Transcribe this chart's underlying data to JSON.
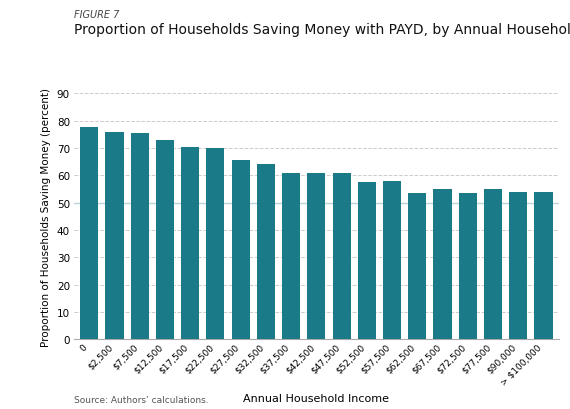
{
  "figure_label": "FIGURE 7",
  "title": "Proportion of Households Saving Money with PAYD, by Annual Household Income",
  "xlabel": "Annual Household Income",
  "ylabel": "Proportion of Households Saving Money (percent)",
  "source": "Source: Authors’ calculations.",
  "bar_color": "#1a7a87",
  "categories": [
    "0",
    "$2,500",
    "$7,500",
    "$12,500",
    "$17,500",
    "$22,500",
    "$27,500",
    "$32,500",
    "$37,500",
    "$42,500",
    "$47,500",
    "$52,500",
    "$57,500",
    "$62,500",
    "$67,500",
    "$72,500",
    "$77,500",
    "$90,000",
    "> $100,000"
  ],
  "values": [
    77.5,
    76.0,
    75.5,
    73.0,
    70.5,
    70.0,
    65.5,
    64.0,
    61.0,
    61.0,
    61.0,
    57.5,
    58.0,
    53.5,
    55.0,
    53.5,
    55.0,
    54.0,
    54.0
  ],
  "ylim": [
    0,
    90
  ],
  "yticks": [
    0,
    10,
    20,
    30,
    40,
    50,
    60,
    70,
    80,
    90
  ],
  "grid_color": "#cccccc",
  "highlight_50_color": "#b8d4d8",
  "bg_color": "#ffffff",
  "bar_width": 0.72,
  "figure_label_fontsize": 7,
  "title_fontsize": 10,
  "xlabel_fontsize": 8,
  "ylabel_fontsize": 7.5,
  "xtick_fontsize": 6.5,
  "ytick_fontsize": 7.5,
  "source_fontsize": 6.5
}
